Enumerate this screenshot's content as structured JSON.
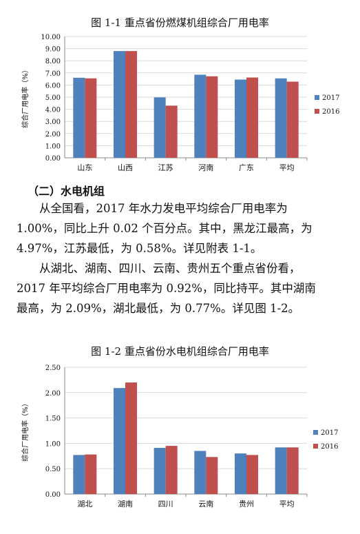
{
  "chart_data": [
    {
      "type": "bar",
      "title": "图 1-1 重点省份燃煤机组综合厂用电率",
      "ylabel": "综合厂用电率（%）",
      "categories": [
        "山东",
        "山西",
        "江苏",
        "河南",
        "广东",
        "平均"
      ],
      "series": [
        {
          "name": "2017",
          "color": "#4f81bd",
          "values": [
            6.6,
            8.8,
            4.98,
            6.85,
            6.45,
            6.55
          ]
        },
        {
          "name": "2016",
          "color": "#c0504d",
          "values": [
            6.55,
            8.8,
            4.3,
            6.72,
            6.62,
            6.28
          ]
        }
      ],
      "ylim": [
        0,
        10
      ],
      "yticks": [
        "0.00",
        "1.00",
        "2.00",
        "3.00",
        "4.00",
        "5.00",
        "6.00",
        "7.00",
        "8.00",
        "9.00",
        "10.00"
      ],
      "grid": true,
      "legend": "right"
    },
    {
      "type": "bar",
      "title": "图 1-2 重点省份水电机组综合厂用电率",
      "ylabel": "综合厂用电率（%）",
      "categories": [
        "湖北",
        "湖南",
        "四川",
        "云南",
        "贵州",
        "平均"
      ],
      "series": [
        {
          "name": "2017",
          "color": "#4f81bd",
          "values": [
            0.77,
            2.09,
            0.91,
            0.85,
            0.8,
            0.92
          ]
        },
        {
          "name": "2016",
          "color": "#c0504d",
          "values": [
            0.78,
            2.2,
            0.95,
            0.73,
            0.77,
            0.92
          ]
        }
      ],
      "ylim": [
        0,
        2.5
      ],
      "yticks": [
        "0.00",
        "0.50",
        "1.00",
        "1.50",
        "2.00",
        "2.50"
      ],
      "grid": true,
      "legend": "right"
    }
  ],
  "text": {
    "heading": "（二）水电机组",
    "para1": [
      "从全国看，2017 年水力发电平均综合厂用电率为",
      "1.00%，同比上升 0.02 个百分点。其中，黑龙江最高，为",
      "4.97%，江苏最低，为 0.58%。详见附表 1-1。"
    ],
    "para2": [
      "从湖北、湖南、四川、云南、贵州五个重点省份看，",
      "2017 年平均综合厂用电率为 0.92%，同比持平。其中湖南",
      "最高，为 2.09%，湖北最低，为 0.77%。详见图 1-2。"
    ]
  }
}
